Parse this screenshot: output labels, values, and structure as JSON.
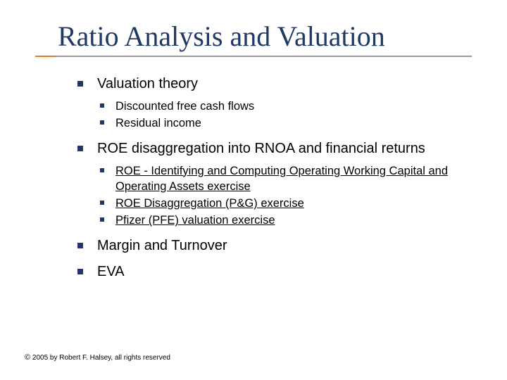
{
  "title": "Ratio Analysis and Valuation",
  "colors": {
    "heading": "#1f3864",
    "bullet": "#1f3864",
    "underline_accent": "#e07a2a",
    "underline_main": "#9a9a9a",
    "background": "#ffffff",
    "text": "#000000"
  },
  "typography": {
    "title_font": "Times New Roman",
    "title_size_pt": 40,
    "body_font": "Verdana",
    "l1_size_pt": 20,
    "l2_size_pt": 16.5,
    "footer_size_pt": 10
  },
  "bullets": [
    {
      "text": "Valuation theory",
      "children": [
        {
          "text": "Discounted free cash flows",
          "link": false
        },
        {
          "text": "Residual income",
          "link": false
        }
      ]
    },
    {
      "text": "ROE disaggregation into RNOA and financial returns",
      "children": [
        {
          "text": "ROE - Identifying and Computing Operating Working Capital and Operating Assets exercise",
          "link": true
        },
        {
          "text": "ROE Disaggregation (P&G) exercise",
          "link": true
        },
        {
          "text": "Pfizer (PFE) valuation exercise",
          "link": true
        }
      ]
    },
    {
      "text": "Margin and Turnover",
      "children": []
    },
    {
      "text": "EVA",
      "children": []
    }
  ],
  "footer": {
    "copyright_symbol": "©",
    "text": " 2005 by Robert F. Halsey, all rights reserved"
  }
}
